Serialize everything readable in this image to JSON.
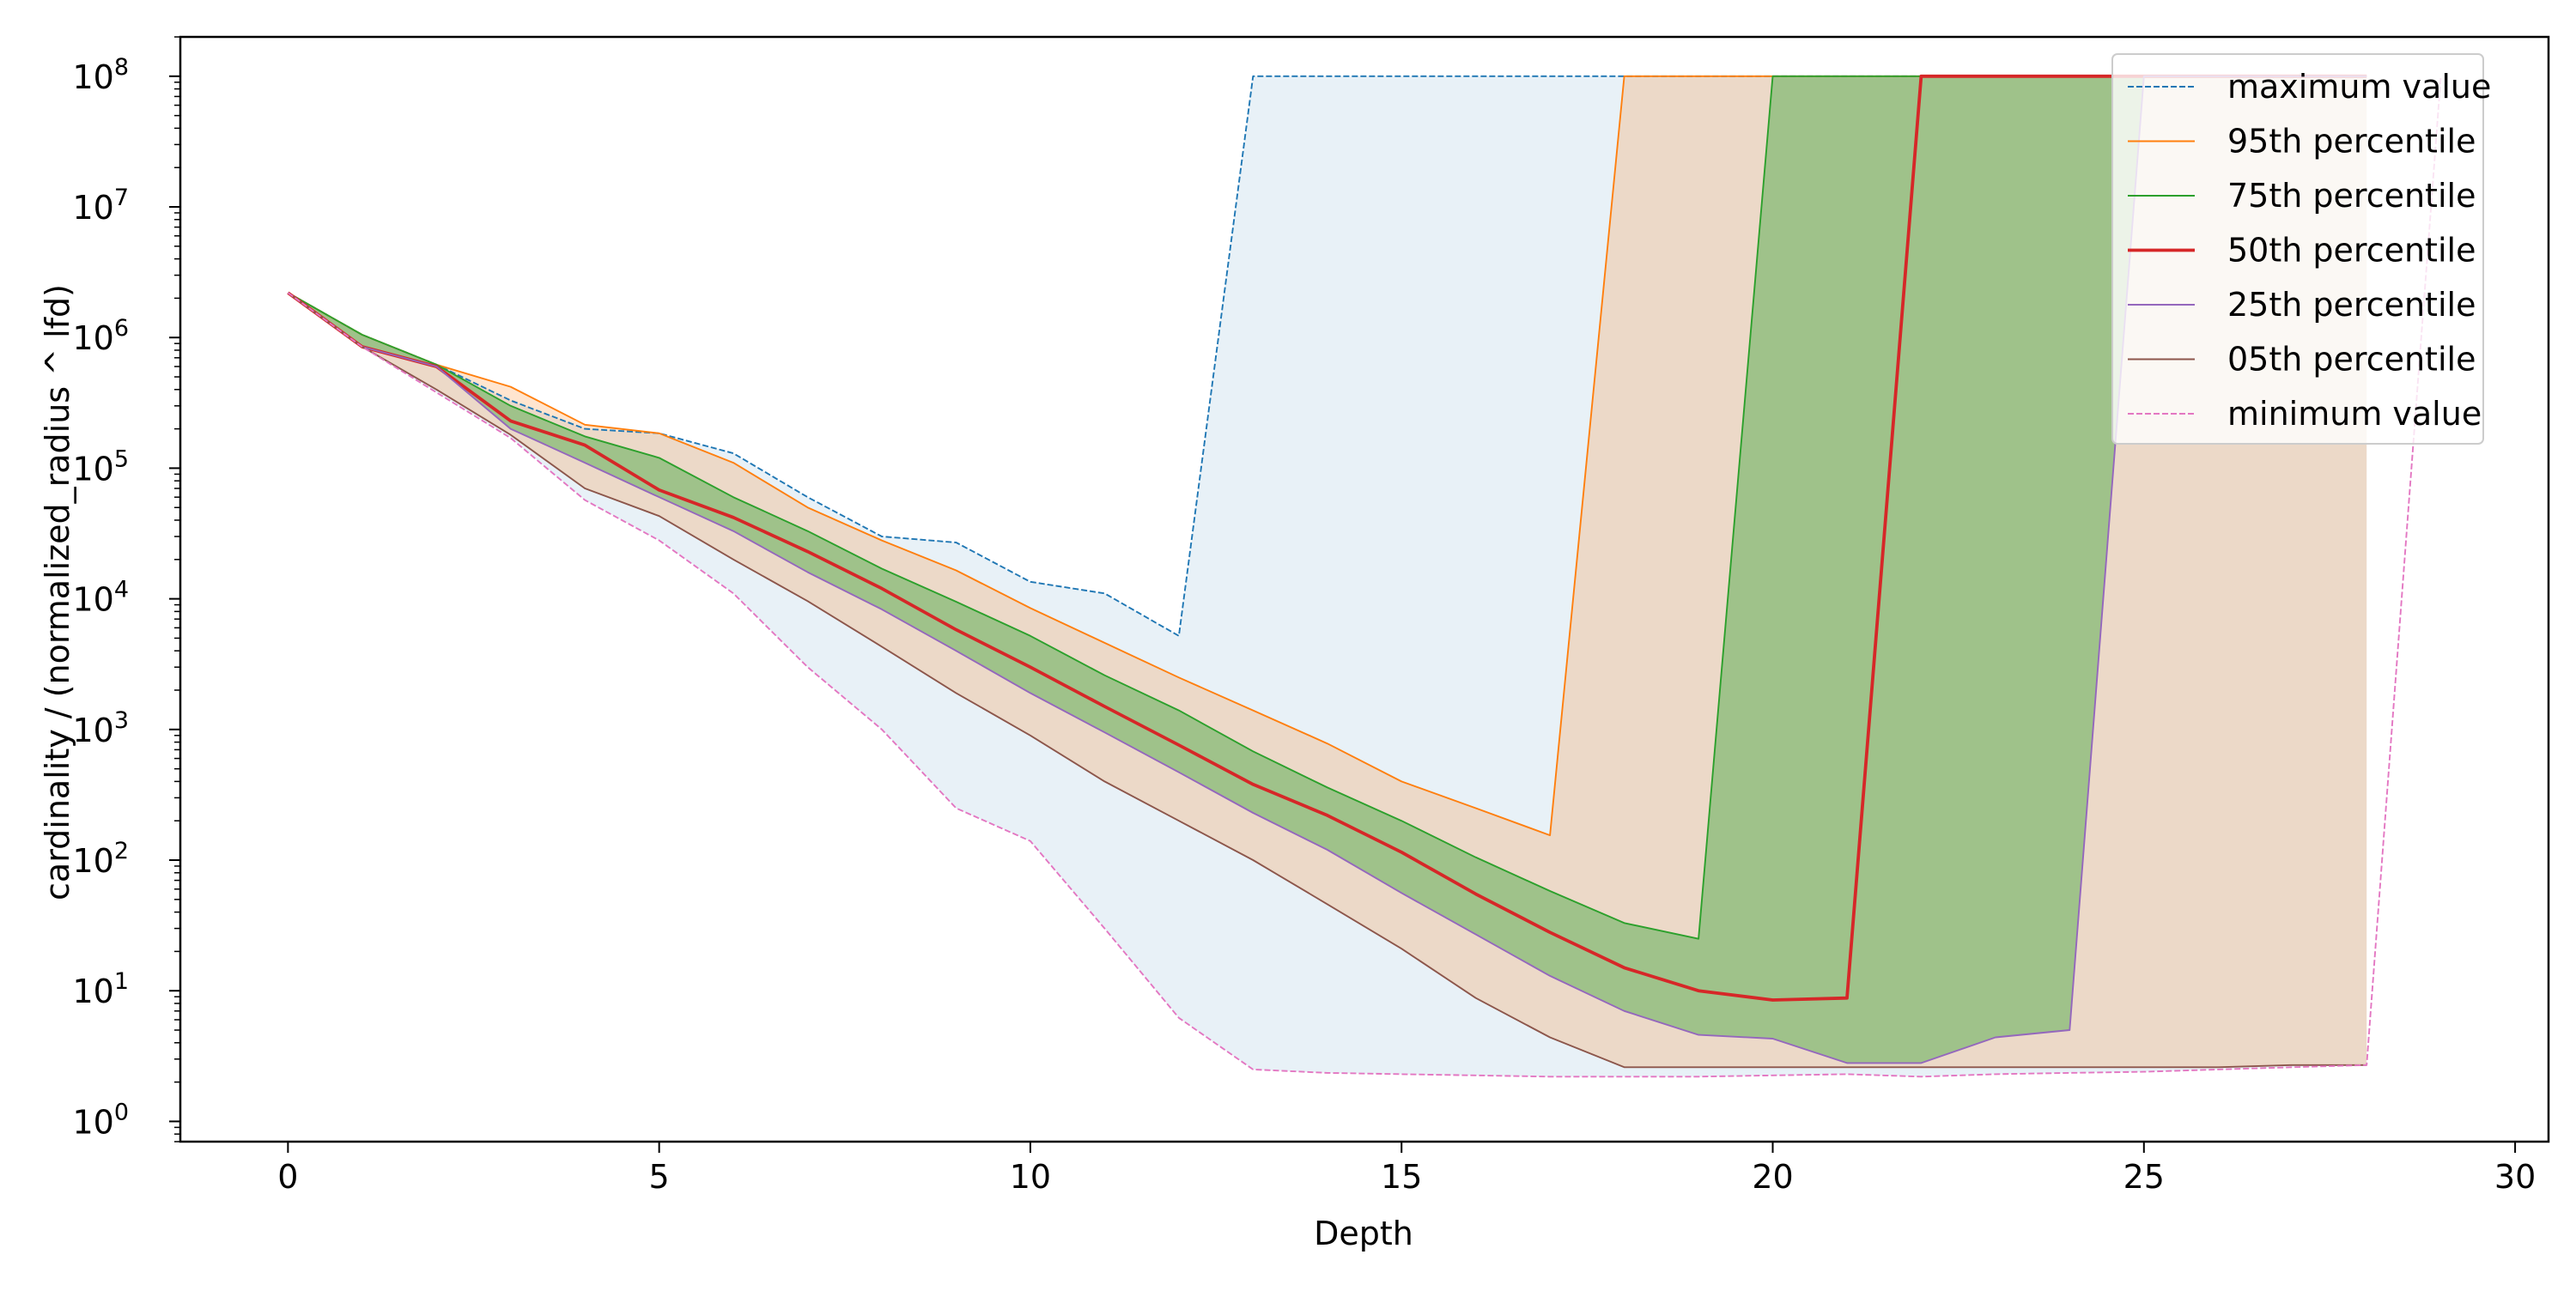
{
  "chart_data": {
    "type": "line",
    "xlabel": "Depth",
    "ylabel": "cardinality / (normalized_radius ^ lfd)",
    "xlim": [
      -1.45,
      30.45
    ],
    "ylim": [
      0.7,
      200000000
    ],
    "yscale": "log",
    "x_ticks": [
      0,
      5,
      10,
      15,
      20,
      25,
      30
    ],
    "x_tick_labels": [
      "0",
      "5",
      "10",
      "15",
      "20",
      "25",
      "30"
    ],
    "y_ticks": [
      1,
      10,
      100,
      1000,
      10000,
      100000,
      1000000,
      10000000,
      100000000
    ],
    "y_tick_labels": [
      "10^0",
      "10^1",
      "10^2",
      "10^3",
      "10^4",
      "10^5",
      "10^6",
      "10^7",
      "10^8"
    ],
    "legend_position": "upper right",
    "bands": [
      {
        "between": [
          "maximum value",
          "minimum value"
        ],
        "color": "#1f77b4",
        "opacity": 0.1
      },
      {
        "between": [
          "95th percentile",
          "05th percentile"
        ],
        "color": "#ff7f0e",
        "opacity": 0.2
      },
      {
        "between": [
          "75th percentile",
          "25th percentile"
        ],
        "color": "#2ca02c",
        "opacity": 0.4
      }
    ],
    "series": [
      {
        "name": "maximum value",
        "color": "#1f77b4",
        "style": "dashed",
        "width": 1,
        "x": [
          0,
          1,
          2,
          3,
          4,
          5,
          6,
          7,
          8,
          9,
          10,
          11,
          12,
          13,
          14,
          15,
          16,
          17,
          18,
          19,
          20,
          21,
          22,
          23,
          24,
          25,
          26,
          27,
          28
        ],
        "y": [
          2200000,
          1050000,
          620000,
          330000,
          200000,
          185000,
          130000,
          60000,
          30000,
          27000,
          13500,
          11000,
          5200,
          100000000,
          100000000,
          100000000,
          100000000,
          100000000,
          100000000,
          100000000,
          100000000,
          100000000,
          100000000,
          100000000,
          100000000,
          100000000,
          100000000,
          100000000,
          100000000
        ]
      },
      {
        "name": "95th percentile",
        "color": "#ff7f0e",
        "style": "solid",
        "width": 1,
        "x": [
          0,
          1,
          2,
          3,
          4,
          5,
          6,
          7,
          8,
          9,
          10,
          11,
          12,
          13,
          14,
          15,
          16,
          17,
          18,
          19,
          20,
          21,
          22,
          23,
          24,
          25,
          26,
          27,
          28
        ],
        "y": [
          2200000,
          1050000,
          620000,
          420000,
          215000,
          185000,
          110000,
          50000,
          28000,
          16500,
          8500,
          4600,
          2500,
          1400,
          780,
          400,
          250,
          155,
          100000000,
          100000000,
          100000000,
          100000000,
          100000000,
          100000000,
          100000000,
          100000000,
          100000000,
          100000000,
          100000000
        ]
      },
      {
        "name": "75th percentile",
        "color": "#2ca02c",
        "style": "solid",
        "width": 1,
        "x": [
          0,
          1,
          2,
          3,
          4,
          5,
          6,
          7,
          8,
          9,
          10,
          11,
          12,
          13,
          14,
          15,
          16,
          17,
          18,
          19,
          20,
          21,
          22,
          23,
          24,
          25,
          26,
          27,
          28
        ],
        "y": [
          2200000,
          1050000,
          620000,
          300000,
          175000,
          120000,
          60000,
          33000,
          17000,
          9500,
          5200,
          2600,
          1400,
          680,
          360,
          200,
          105,
          58,
          33,
          25,
          100000000,
          100000000,
          100000000,
          100000000,
          100000000,
          100000000,
          100000000,
          100000000,
          100000000
        ]
      },
      {
        "name": "50th percentile",
        "color": "#d62728",
        "style": "solid",
        "width": 2,
        "x": [
          0,
          1,
          2,
          3,
          4,
          5,
          6,
          7,
          8,
          9,
          10,
          11,
          12,
          13,
          14,
          15,
          16,
          17,
          18,
          19,
          20,
          21,
          22,
          23,
          24,
          25,
          26,
          27,
          28
        ],
        "y": [
          2200000,
          850000,
          600000,
          230000,
          150000,
          68000,
          42000,
          23000,
          12000,
          5800,
          3000,
          1500,
          760,
          380,
          220,
          115,
          55,
          28,
          15,
          10,
          8.5,
          8.8,
          100000000,
          100000000,
          100000000,
          100000000,
          100000000,
          100000000,
          100000000
        ]
      },
      {
        "name": "25th percentile",
        "color": "#9467bd",
        "style": "solid",
        "width": 1,
        "x": [
          0,
          1,
          2,
          3,
          4,
          5,
          6,
          7,
          8,
          9,
          10,
          11,
          12,
          13,
          14,
          15,
          16,
          17,
          18,
          19,
          20,
          21,
          22,
          23,
          24,
          25,
          26,
          27,
          28
        ],
        "y": [
          2200000,
          850000,
          600000,
          200000,
          110000,
          60000,
          33000,
          16000,
          8300,
          4000,
          1900,
          950,
          470,
          230,
          120,
          56,
          27,
          13,
          7,
          4.6,
          4.3,
          2.8,
          2.8,
          4.4,
          5,
          100000000,
          100000000,
          100000000,
          100000000
        ]
      },
      {
        "name": "05th percentile",
        "color": "#8c564b",
        "style": "solid",
        "width": 1,
        "x": [
          0,
          1,
          2,
          3,
          4,
          5,
          6,
          7,
          8,
          9,
          10,
          11,
          12,
          13,
          14,
          15,
          16,
          17,
          18,
          19,
          20,
          21,
          22,
          23,
          24,
          25,
          26,
          27,
          28
        ],
        "y": [
          2200000,
          850000,
          400000,
          180000,
          70000,
          43000,
          20000,
          9600,
          4300,
          1900,
          900,
          400,
          200,
          100,
          46,
          21,
          8.8,
          4.4,
          2.6,
          2.6,
          2.6,
          2.6,
          2.6,
          2.6,
          2.6,
          2.6,
          2.6,
          2.7,
          2.7
        ]
      },
      {
        "name": "minimum value",
        "color": "#e377c2",
        "style": "dashed",
        "width": 1,
        "x": [
          0,
          1,
          2,
          3,
          4,
          5,
          6,
          7,
          8,
          9,
          10,
          11,
          12,
          13,
          14,
          15,
          16,
          17,
          18,
          19,
          20,
          21,
          22,
          23,
          24,
          25,
          26,
          27,
          28,
          29
        ],
        "y": [
          2200000,
          850000,
          380000,
          170000,
          57000,
          28000,
          11000,
          3000,
          1000,
          250,
          140,
          30,
          6.2,
          2.5,
          2.35,
          2.3,
          2.25,
          2.2,
          2.2,
          2.2,
          2.25,
          2.3,
          2.2,
          2.3,
          2.35,
          2.4,
          2.5,
          2.6,
          2.7,
          100000000
        ]
      }
    ]
  }
}
